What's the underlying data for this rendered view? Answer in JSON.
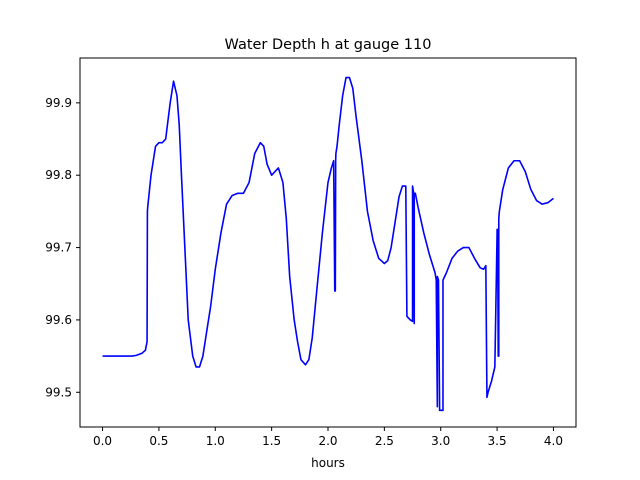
{
  "chart_data": {
    "type": "line",
    "title": "Water Depth h at gauge 110",
    "xlabel": "hours",
    "ylabel": "",
    "xlim": [
      -0.2,
      4.2
    ],
    "ylim": [
      99.452,
      99.962
    ],
    "xticks": [
      0.0,
      0.5,
      1.0,
      1.5,
      2.0,
      2.5,
      3.0,
      3.5,
      4.0
    ],
    "xtick_labels": [
      "0.0",
      "0.5",
      "1.0",
      "1.5",
      "2.0",
      "2.5",
      "3.0",
      "3.5",
      "4.0"
    ],
    "yticks": [
      99.5,
      99.6,
      99.7,
      99.8,
      99.9
    ],
    "ytick_labels": [
      "99.5",
      "99.6",
      "99.7",
      "99.8",
      "99.9"
    ],
    "grid": false,
    "series": [
      {
        "color": "#0000ff",
        "x": [
          0.0,
          0.1,
          0.2,
          0.26,
          0.3,
          0.35,
          0.38,
          0.395,
          0.398,
          0.4,
          0.43,
          0.47,
          0.5,
          0.53,
          0.56,
          0.6,
          0.63,
          0.66,
          0.68,
          0.7,
          0.73,
          0.76,
          0.8,
          0.83,
          0.86,
          0.89,
          0.92,
          0.96,
          1.0,
          1.05,
          1.1,
          1.15,
          1.2,
          1.25,
          1.3,
          1.35,
          1.4,
          1.43,
          1.46,
          1.5,
          1.53,
          1.56,
          1.6,
          1.63,
          1.66,
          1.7,
          1.73,
          1.76,
          1.8,
          1.83,
          1.86,
          1.9,
          1.95,
          2.0,
          2.03,
          2.05,
          2.06,
          2.065,
          2.068,
          2.07,
          2.075,
          2.08,
          2.1,
          2.13,
          2.16,
          2.19,
          2.22,
          2.25,
          2.3,
          2.35,
          2.4,
          2.45,
          2.5,
          2.53,
          2.56,
          2.6,
          2.63,
          2.66,
          2.69,
          2.7,
          2.7,
          2.73,
          2.75,
          2.75,
          2.76,
          2.765,
          2.765,
          2.77,
          2.775,
          2.775,
          2.8,
          2.85,
          2.9,
          2.95,
          2.96,
          2.97,
          2.97,
          2.98,
          2.99,
          2.99,
          3.0,
          3.01,
          3.02,
          3.02,
          3.05,
          3.1,
          3.15,
          3.2,
          3.25,
          3.3,
          3.35,
          3.38,
          3.4,
          3.41,
          3.42,
          3.45,
          3.48,
          3.5,
          3.5,
          3.505,
          3.51,
          3.51,
          3.515,
          3.515,
          3.52,
          3.55,
          3.6,
          3.65,
          3.7,
          3.75,
          3.8,
          3.85,
          3.9,
          3.95,
          4.0
        ],
        "y": [
          99.55,
          99.55,
          99.55,
          99.55,
          99.551,
          99.554,
          99.558,
          99.57,
          99.75,
          99.755,
          99.8,
          99.84,
          99.845,
          99.845,
          99.85,
          99.9,
          99.93,
          99.91,
          99.87,
          99.8,
          99.7,
          99.6,
          99.55,
          99.535,
          99.535,
          99.55,
          99.58,
          99.62,
          99.67,
          99.72,
          99.76,
          99.772,
          99.775,
          99.775,
          99.79,
          99.83,
          99.845,
          99.84,
          99.815,
          99.8,
          99.805,
          99.81,
          99.79,
          99.74,
          99.66,
          99.6,
          99.57,
          99.545,
          99.538,
          99.545,
          99.575,
          99.64,
          99.72,
          99.79,
          99.81,
          99.82,
          99.64,
          99.64,
          99.82,
          99.83,
          99.835,
          99.84,
          99.87,
          99.91,
          99.935,
          99.935,
          99.92,
          99.88,
          99.82,
          99.75,
          99.71,
          99.685,
          99.678,
          99.682,
          99.7,
          99.74,
          99.77,
          99.785,
          99.785,
          99.605,
          99.605,
          99.6,
          99.598,
          99.785,
          99.775,
          99.595,
          99.775,
          99.775,
          99.775,
          99.775,
          99.755,
          99.72,
          99.69,
          99.665,
          99.655,
          99.48,
          99.66,
          99.655,
          99.48,
          99.475,
          99.475,
          99.475,
          99.475,
          99.655,
          99.665,
          99.685,
          99.695,
          99.7,
          99.7,
          99.685,
          99.672,
          99.67,
          99.675,
          99.493,
          99.5,
          99.515,
          99.535,
          99.72,
          99.725,
          99.725,
          99.55,
          99.55,
          99.55,
          99.74,
          99.75,
          99.78,
          99.81,
          99.82,
          99.82,
          99.805,
          99.78,
          99.765,
          99.76,
          99.762,
          99.768
        ]
      }
    ]
  }
}
